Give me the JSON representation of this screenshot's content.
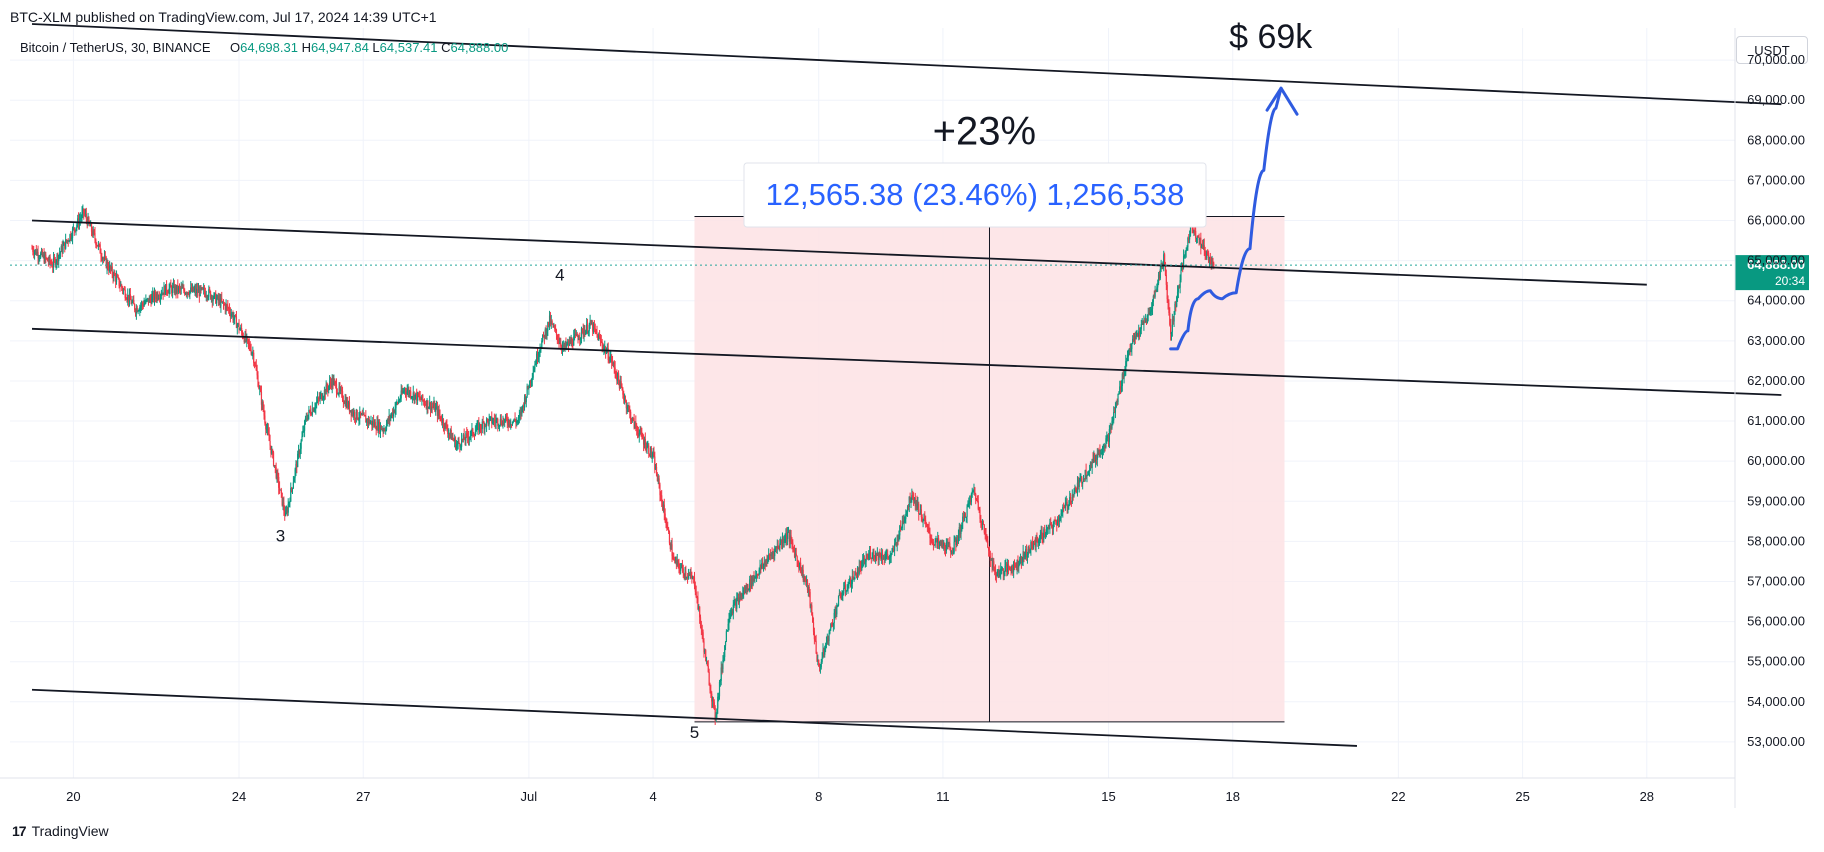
{
  "header": {
    "published": "BTC-XLM published on TradingView.com, Jul 17, 2024 14:39 UTC+1"
  },
  "symbol": {
    "name": "Bitcoin / TetherUS, 30, BINANCE",
    "ohlc": [
      {
        "k": "O",
        "v": "64,698.31"
      },
      {
        "k": "H",
        "v": "64,947.84"
      },
      {
        "k": "L",
        "v": "64,537.41"
      },
      {
        "k": "C",
        "v": "64,888.00"
      }
    ]
  },
  "currency_button": "USDT",
  "price_tag": {
    "price": "64,888.00",
    "countdown": "20:34"
  },
  "footer": {
    "logo": "TradingView",
    "mark": "17"
  },
  "colors": {
    "up": "#089981",
    "down": "#f23645",
    "blue": "#2962ff",
    "drawing_blue": "#2f5be0",
    "range_fill": "#fde2e4",
    "price_line": "#26a69a"
  },
  "chart_data": {
    "type": "candlestick",
    "ylim": [
      52100,
      70800
    ],
    "x_ticks": [
      "20",
      "24",
      "27",
      "Jul",
      "4",
      "8",
      "11",
      "15",
      "18",
      "22",
      "25",
      "28"
    ],
    "y_ticks": [
      "53,000.00",
      "54,000.00",
      "55,000.00",
      "56,000.00",
      "57,000.00",
      "58,000.00",
      "59,000.00",
      "60,000.00",
      "61,000.00",
      "62,000.00",
      "63,000.00",
      "64,000.00",
      "65,000.00",
      "66,000.00",
      "67,000.00",
      "68,000.00",
      "69,000.00",
      "70,000.00"
    ],
    "last_price": 64888,
    "price_path": [
      [
        "Jun 19 00:00",
        65300
      ],
      [
        "Jun 19 12:00",
        64900
      ],
      [
        "Jun 20 06:00",
        66200
      ],
      [
        "Jun 20 18:00",
        65000
      ],
      [
        "Jun 21 12:00",
        63800
      ],
      [
        "Jun 22 06:00",
        64300
      ],
      [
        "Jun 23 06:00",
        64200
      ],
      [
        "Jun 23 18:00",
        63800
      ],
      [
        "Jun 24 08:00",
        62700
      ],
      [
        "Jun 24 16:00",
        60800
      ],
      [
        "Jun 25 03:00",
        58600
      ],
      [
        "Jun 25 15:00",
        61100
      ],
      [
        "Jun 26 06:00",
        62000
      ],
      [
        "Jun 26 18:00",
        61200
      ],
      [
        "Jun 27 12:00",
        60800
      ],
      [
        "Jun 28 00:00",
        61800
      ],
      [
        "Jun 28 18:00",
        61300
      ],
      [
        "Jun 29 06:00",
        60400
      ],
      [
        "Jun 30 00:00",
        61000
      ],
      [
        "Jun 30 18:00",
        61000
      ],
      [
        "Jul 1 06:00",
        62800
      ],
      [
        "Jul 1 12:00",
        63500
      ],
      [
        "Jul 1 20:00",
        62800
      ],
      [
        "Jul 2 12:00",
        63400
      ],
      [
        "Jul 3 00:00",
        62500
      ],
      [
        "Jul 3 12:00",
        61000
      ],
      [
        "Jul 4 00:00",
        60100
      ],
      [
        "Jul 4 12:00",
        57500
      ],
      [
        "Jul 5 00:00",
        57000
      ],
      [
        "Jul 5 06:00",
        55200
      ],
      [
        "Jul 5 12:00",
        53600
      ],
      [
        "Jul 5 20:00",
        56200
      ],
      [
        "Jul 6 12:00",
        57200
      ],
      [
        "Jul 7 06:00",
        58200
      ],
      [
        "Jul 7 18:00",
        56800
      ],
      [
        "Jul 8 00:00",
        54800
      ],
      [
        "Jul 8 12:00",
        56600
      ],
      [
        "Jul 9 06:00",
        57700
      ],
      [
        "Jul 9 18:00",
        57600
      ],
      [
        "Jul 10 06:00",
        59200
      ],
      [
        "Jul 10 18:00",
        58000
      ],
      [
        "Jul 11 06:00",
        57800
      ],
      [
        "Jul 11 18:00",
        59300
      ],
      [
        "Jul 12 06:00",
        57200
      ],
      [
        "Jul 12 18:00",
        57400
      ],
      [
        "Jul 13 06:00",
        58000
      ],
      [
        "Jul 13 18:00",
        58500
      ],
      [
        "Jul 14 12:00",
        59800
      ],
      [
        "Jul 15 00:00",
        60600
      ],
      [
        "Jul 15 12:00",
        62800
      ],
      [
        "Jul 16 00:00",
        63700
      ],
      [
        "Jul 16 08:00",
        65100
      ],
      [
        "Jul 16 12:00",
        63200
      ],
      [
        "Jul 16 18:00",
        64700
      ],
      [
        "Jul 17 00:00",
        65900
      ],
      [
        "Jul 17 08:00",
        65200
      ],
      [
        "Jul 17 13:00",
        64888
      ]
    ],
    "channel_lines": [
      {
        "from": [
          "Jun 19 00:00",
          70900
        ],
        "to": [
          "Jul 31 06:00",
          68900
        ]
      },
      {
        "from": [
          "Jun 19 00:00",
          66000
        ],
        "to": [
          "Jul 28 00:00",
          64400
        ]
      },
      {
        "from": [
          "Jun 19 00:00",
          63300
        ],
        "to": [
          "Jul 31 06:00",
          61650
        ]
      },
      {
        "from": [
          "Jun 19 00:00",
          54300
        ],
        "to": [
          "Jul 21 00:00",
          52900
        ]
      }
    ],
    "wave_labels": [
      {
        "text": "3",
        "date": "Jun 25 00:00",
        "y": 58000
      },
      {
        "text": "4",
        "date": "Jul 1 18:00",
        "y": 64500
      },
      {
        "text": "5",
        "date": "Jul 5 00:00",
        "y": 53100
      }
    ],
    "range_box": {
      "x0": "Jul 5 00:00",
      "x1": "Jul 19 06:00",
      "low": 53500,
      "high": 66100
    },
    "range_label": "12,565.38 (23.46%) 1,256,538",
    "annotations": [
      {
        "text": "+23%",
        "date": "Jul 12 00:00",
        "y": 67900
      },
      {
        "text": "$ 69k",
        "date": "Jul 18 22:00",
        "y": 70300
      }
    ],
    "projection_path": [
      [
        "Jul 16 12:00",
        62800
      ],
      [
        "Jul 16 20:00",
        62800
      ],
      [
        "Jul 17 00:00",
        63700
      ],
      [
        "Jul 17 08:00",
        64400
      ],
      [
        "Jul 17 14:00",
        64100
      ],
      [
        "Jul 17 22:00",
        64000
      ],
      [
        "Jul 18 06:00",
        64400
      ],
      [
        "Jul 18 14:00",
        66200
      ],
      [
        "Jul 18 22:00",
        68300
      ],
      [
        "Jul 19 04:00",
        69300
      ]
    ]
  }
}
